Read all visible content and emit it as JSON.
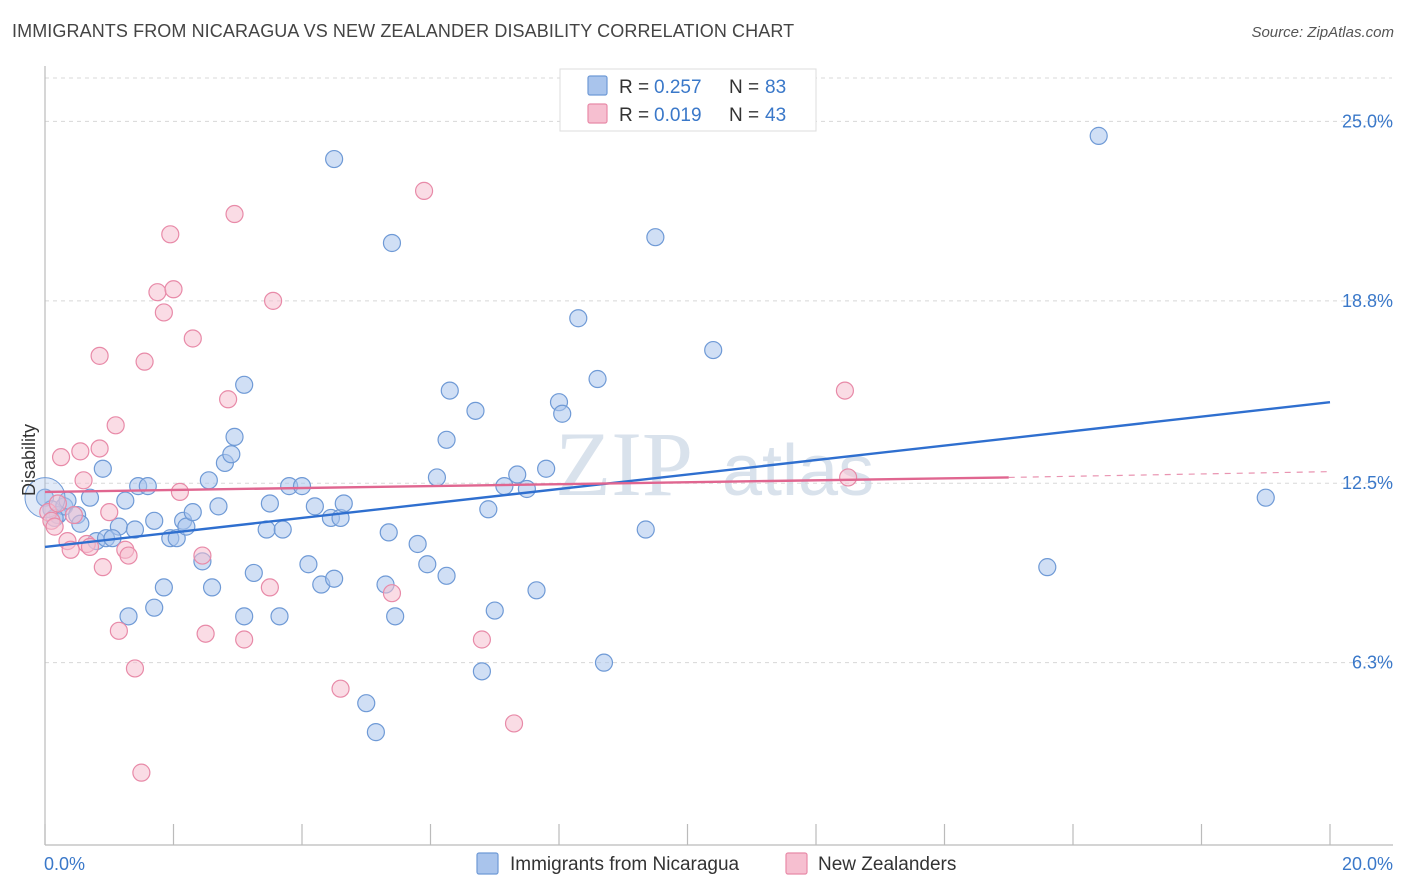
{
  "title": "IMMIGRANTS FROM NICARAGUA VS NEW ZEALANDER DISABILITY CORRELATION CHART",
  "source": "Source: ZipAtlas.com",
  "watermark": {
    "zip": "ZIP",
    "atlas": "atlas"
  },
  "legend": {
    "series1": {
      "r_label": "R =",
      "r_value": "0.257",
      "n_label": "N =",
      "n_value": "83"
    },
    "series2": {
      "r_label": "R =",
      "r_value": "0.019",
      "n_label": "N =",
      "n_value": "43"
    }
  },
  "bottom_legend": {
    "series1": "Immigrants from Nicaragua",
    "series2": "New Zealanders"
  },
  "colors": {
    "blue_fill": "#a9c4ec",
    "blue_stroke": "#6f9ad6",
    "blue_line": "#2f6fcf",
    "pink_fill": "#f6bfd0",
    "pink_stroke": "#e88aa8",
    "pink_line": "#e06690",
    "grid": "#d8d8d8",
    "tick_text": "#3a78c9"
  },
  "chart_data": {
    "type": "scatter",
    "title": "IMMIGRANTS FROM NICARAGUA VS NEW ZEALANDER DISABILITY CORRELATION CHART",
    "xlabel": "",
    "ylabel": "Disability",
    "xlim": [
      0,
      20
    ],
    "ylim": [
      0,
      26.5
    ],
    "x_ticks": [
      "0.0%",
      "20.0%"
    ],
    "y_ticks": [
      {
        "value": 6.3,
        "label": "6.3%"
      },
      {
        "value": 12.5,
        "label": "12.5%"
      },
      {
        "value": 18.8,
        "label": "18.8%"
      },
      {
        "value": 25.0,
        "label": "25.0%"
      }
    ],
    "series": [
      {
        "name": "Immigrants from Nicaragua",
        "color": "#a9c4ec",
        "points": [
          [
            0.0,
            12.0
          ],
          [
            0.1,
            11.6
          ],
          [
            0.2,
            11.4
          ],
          [
            0.3,
            11.7
          ],
          [
            0.35,
            11.9
          ],
          [
            0.15,
            11.3
          ],
          [
            0.5,
            11.4
          ],
          [
            0.55,
            11.1
          ],
          [
            0.7,
            12.0
          ],
          [
            0.8,
            10.5
          ],
          [
            0.95,
            10.6
          ],
          [
            1.15,
            11.0
          ],
          [
            1.05,
            10.6
          ],
          [
            0.9,
            13.0
          ],
          [
            1.25,
            11.9
          ],
          [
            1.45,
            12.4
          ],
          [
            1.6,
            12.4
          ],
          [
            1.7,
            11.2
          ],
          [
            1.3,
            7.9
          ],
          [
            1.4,
            10.9
          ],
          [
            1.7,
            8.2
          ],
          [
            1.85,
            8.9
          ],
          [
            1.95,
            10.6
          ],
          [
            2.05,
            10.6
          ],
          [
            2.15,
            11.2
          ],
          [
            2.2,
            11.0
          ],
          [
            2.45,
            9.8
          ],
          [
            2.55,
            12.6
          ],
          [
            2.6,
            8.9
          ],
          [
            2.7,
            11.7
          ],
          [
            2.8,
            13.2
          ],
          [
            2.9,
            13.5
          ],
          [
            2.95,
            14.1
          ],
          [
            3.1,
            15.9
          ],
          [
            3.1,
            7.9
          ],
          [
            3.25,
            9.4
          ],
          [
            3.45,
            10.9
          ],
          [
            3.65,
            7.9
          ],
          [
            3.7,
            10.9
          ],
          [
            3.8,
            12.4
          ],
          [
            4.0,
            12.4
          ],
          [
            4.1,
            9.7
          ],
          [
            4.2,
            11.7
          ],
          [
            4.3,
            9.0
          ],
          [
            4.45,
            11.3
          ],
          [
            4.5,
            9.2
          ],
          [
            4.6,
            11.3
          ],
          [
            4.65,
            11.8
          ],
          [
            5.0,
            4.9
          ],
          [
            5.15,
            3.9
          ],
          [
            5.3,
            9.0
          ],
          [
            5.35,
            10.8
          ],
          [
            5.45,
            7.9
          ],
          [
            5.8,
            10.4
          ],
          [
            5.95,
            9.7
          ],
          [
            6.1,
            12.7
          ],
          [
            6.25,
            9.3
          ],
          [
            6.25,
            14.0
          ],
          [
            6.3,
            15.7
          ],
          [
            6.7,
            15.0
          ],
          [
            6.8,
            6.0
          ],
          [
            7.0,
            8.1
          ],
          [
            7.15,
            12.4
          ],
          [
            7.35,
            12.8
          ],
          [
            7.5,
            12.3
          ],
          [
            7.65,
            8.8
          ],
          [
            8.0,
            15.3
          ],
          [
            8.05,
            14.9
          ],
          [
            8.3,
            18.2
          ],
          [
            8.6,
            16.1
          ],
          [
            8.7,
            6.3
          ],
          [
            9.35,
            10.9
          ],
          [
            9.5,
            21.0
          ],
          [
            10.4,
            17.1
          ],
          [
            4.5,
            23.7
          ],
          [
            5.4,
            20.8
          ],
          [
            16.4,
            24.5
          ],
          [
            15.6,
            9.6
          ],
          [
            19.0,
            12.0
          ],
          [
            3.5,
            11.8
          ],
          [
            2.3,
            11.5
          ],
          [
            7.8,
            13.0
          ],
          [
            6.9,
            11.6
          ]
        ]
      },
      {
        "name": "New Zealanders",
        "color": "#f6bfd0",
        "points": [
          [
            0.05,
            11.5
          ],
          [
            0.1,
            11.2
          ],
          [
            0.15,
            11.0
          ],
          [
            0.2,
            11.8
          ],
          [
            0.25,
            13.4
          ],
          [
            0.35,
            10.5
          ],
          [
            0.4,
            10.2
          ],
          [
            0.45,
            11.4
          ],
          [
            0.55,
            13.6
          ],
          [
            0.65,
            10.4
          ],
          [
            0.7,
            10.3
          ],
          [
            0.85,
            13.7
          ],
          [
            0.9,
            9.6
          ],
          [
            1.0,
            11.5
          ],
          [
            1.1,
            14.5
          ],
          [
            1.15,
            7.4
          ],
          [
            1.25,
            10.2
          ],
          [
            1.3,
            10.0
          ],
          [
            1.4,
            6.1
          ],
          [
            1.5,
            2.5
          ],
          [
            1.55,
            16.7
          ],
          [
            1.75,
            19.1
          ],
          [
            1.85,
            18.4
          ],
          [
            1.95,
            21.1
          ],
          [
            2.0,
            19.2
          ],
          [
            2.1,
            12.2
          ],
          [
            2.3,
            17.5
          ],
          [
            2.45,
            10.0
          ],
          [
            2.5,
            7.3
          ],
          [
            2.85,
            15.4
          ],
          [
            2.95,
            21.8
          ],
          [
            3.1,
            7.1
          ],
          [
            3.5,
            8.9
          ],
          [
            3.55,
            18.8
          ],
          [
            4.6,
            5.4
          ],
          [
            5.4,
            8.7
          ],
          [
            5.9,
            22.6
          ],
          [
            6.8,
            7.1
          ],
          [
            7.3,
            4.2
          ],
          [
            12.5,
            12.7
          ],
          [
            12.45,
            15.7
          ],
          [
            0.85,
            16.9
          ],
          [
            0.6,
            12.6
          ]
        ]
      }
    ],
    "trend_lines": [
      {
        "series": "Immigrants from Nicaragua",
        "x": [
          0,
          20
        ],
        "y": [
          10.3,
          15.3
        ]
      },
      {
        "series": "New Zealanders",
        "x": [
          0,
          15
        ],
        "y": [
          12.2,
          12.7
        ],
        "dashed_extension": [
          15,
          20,
          12.7,
          12.9
        ]
      }
    ]
  }
}
